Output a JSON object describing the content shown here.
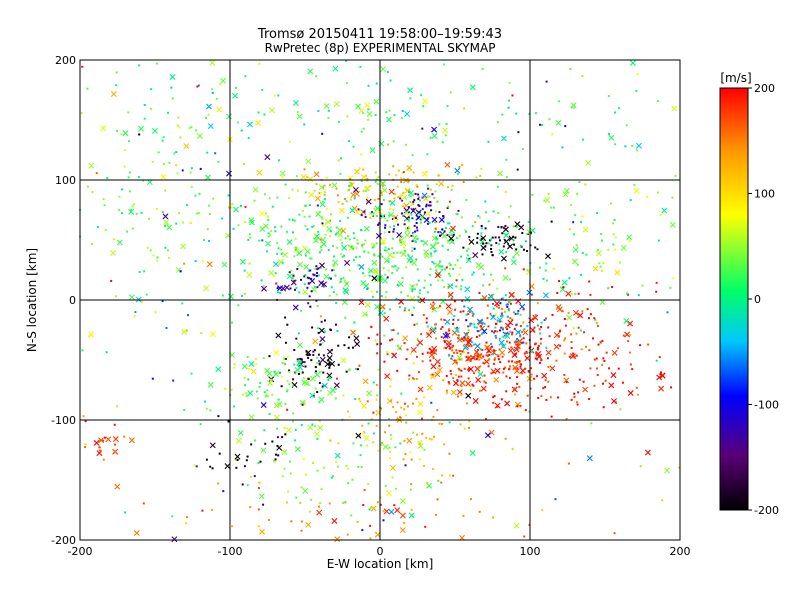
{
  "chart_data": {
    "type": "scatter",
    "title": "Tromsø 20150411 19:58:00–19:59:43",
    "subtitle": "RwPretec (8p) EXPERIMENTAL SKYMAP",
    "xlabel": "E-W location [km]",
    "ylabel": "N-S location [km]",
    "xlim": [
      -200,
      200
    ],
    "ylim": [
      -200,
      200
    ],
    "xticks": [
      -200,
      -100,
      0,
      100,
      200
    ],
    "yticks": [
      -200,
      -100,
      0,
      100,
      200
    ],
    "grid": true,
    "colorbar": {
      "unit": "[m/s]",
      "min": -200,
      "max": 200,
      "ticks": [
        200,
        100,
        0,
        -100,
        -200
      ],
      "colors": [
        "#000000",
        "#5a0078",
        "#0000ff",
        "#00c8ff",
        "#00ff66",
        "#ffff00",
        "#ff9900",
        "#ff0000"
      ]
    },
    "markers": [
      "dot",
      "x"
    ],
    "clusters": [
      {
        "x": 0,
        "y": 90,
        "sx": 30,
        "sy": 12,
        "v": 120,
        "n": 120
      },
      {
        "x": 20,
        "y": 70,
        "sx": 14,
        "sy": 10,
        "v": -120,
        "n": 90
      },
      {
        "x": -20,
        "y": 60,
        "sx": 55,
        "sy": 25,
        "v": 30,
        "n": 260
      },
      {
        "x": 80,
        "y": 50,
        "sx": 15,
        "sy": 8,
        "v": -200,
        "n": 60
      },
      {
        "x": 10,
        "y": 30,
        "sx": 45,
        "sy": 30,
        "v": 20,
        "n": 320
      },
      {
        "x": 65,
        "y": -40,
        "sx": 30,
        "sy": 20,
        "v": 185,
        "n": 320
      },
      {
        "x": 120,
        "y": -40,
        "sx": 45,
        "sy": 30,
        "v": 190,
        "n": 220
      },
      {
        "x": 75,
        "y": -20,
        "sx": 18,
        "sy": 12,
        "v": -40,
        "n": 90
      },
      {
        "x": -45,
        "y": -45,
        "sx": 15,
        "sy": 15,
        "v": -200,
        "n": 80
      },
      {
        "x": -50,
        "y": 15,
        "sx": 10,
        "sy": 8,
        "v": -130,
        "n": 40
      },
      {
        "x": -60,
        "y": -70,
        "sx": 30,
        "sy": 15,
        "v": 40,
        "n": 110
      },
      {
        "x": -30,
        "y": -130,
        "sx": 40,
        "sy": 25,
        "v": 40,
        "n": 90
      },
      {
        "x": -90,
        "y": -130,
        "sx": 15,
        "sy": 15,
        "v": -190,
        "n": 30
      },
      {
        "x": 20,
        "y": -100,
        "sx": 30,
        "sy": 25,
        "v": 120,
        "n": 100
      },
      {
        "x": 30,
        "y": 160,
        "sx": 80,
        "sy": 20,
        "v": 20,
        "n": 120
      },
      {
        "x": -150,
        "y": 100,
        "sx": 40,
        "sy": 60,
        "v": 40,
        "n": 120
      },
      {
        "x": 150,
        "y": 50,
        "sx": 30,
        "sy": 40,
        "v": 40,
        "n": 70
      },
      {
        "x": 0,
        "y": -180,
        "sx": 70,
        "sy": 15,
        "v": 150,
        "n": 60
      },
      {
        "x": -185,
        "y": -120,
        "sx": 10,
        "sy": 10,
        "v": 180,
        "n": 20
      },
      {
        "x": 0,
        "y": 0,
        "sx": 190,
        "sy": 190,
        "v": 20,
        "vs": 110,
        "n": 350
      }
    ]
  }
}
